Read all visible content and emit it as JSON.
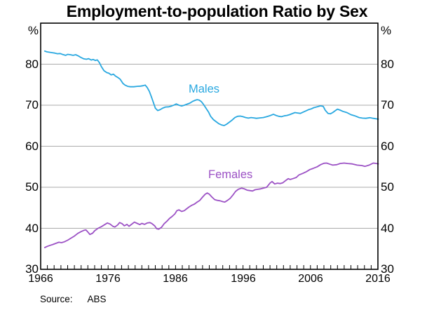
{
  "chart_data": {
    "type": "line",
    "title": "Employment-to-population Ratio by Sex",
    "unit": "%",
    "xlabel": "",
    "ylabel": "%",
    "x_range": [
      1966,
      2016
    ],
    "y_range": [
      30,
      90
    ],
    "yticks": [
      30,
      40,
      50,
      60,
      70,
      80
    ],
    "gridlines": [
      40,
      50,
      60,
      70,
      80
    ],
    "xticks": [
      1966,
      1976,
      1986,
      1996,
      2006,
      2016
    ],
    "x_tick_interval_years": 1,
    "grid_on": true,
    "grid_color": "#ababab",
    "frame_color": "#000000",
    "legend_position": "inline-labels",
    "series": [
      {
        "name": "Males",
        "color": "#29a8e0",
        "points": [
          [
            1966.6,
            83.2
          ],
          [
            1966.9,
            83.0
          ],
          [
            1967.3,
            82.9
          ],
          [
            1967.7,
            82.8
          ],
          [
            1968.1,
            82.7
          ],
          [
            1968.5,
            82.55
          ],
          [
            1968.9,
            82.6
          ],
          [
            1969.3,
            82.35
          ],
          [
            1969.7,
            82.15
          ],
          [
            1970.0,
            82.4
          ],
          [
            1970.4,
            82.3
          ],
          [
            1970.8,
            82.15
          ],
          [
            1971.2,
            82.3
          ],
          [
            1971.6,
            82.0
          ],
          [
            1972.0,
            81.6
          ],
          [
            1972.4,
            81.3
          ],
          [
            1972.8,
            81.2
          ],
          [
            1973.1,
            81.35
          ],
          [
            1973.5,
            81.0
          ],
          [
            1973.8,
            81.15
          ],
          [
            1974.1,
            80.9
          ],
          [
            1974.4,
            81.05
          ],
          [
            1974.7,
            80.4
          ],
          [
            1975.0,
            79.4
          ],
          [
            1975.4,
            78.4
          ],
          [
            1975.8,
            77.95
          ],
          [
            1976.1,
            77.8
          ],
          [
            1976.45,
            77.4
          ],
          [
            1976.8,
            77.55
          ],
          [
            1977.1,
            77.1
          ],
          [
            1977.5,
            76.7
          ],
          [
            1977.8,
            76.3
          ],
          [
            1978.2,
            75.3
          ],
          [
            1978.5,
            74.9
          ],
          [
            1978.9,
            74.6
          ],
          [
            1979.3,
            74.5
          ],
          [
            1979.8,
            74.5
          ],
          [
            1980.3,
            74.6
          ],
          [
            1980.8,
            74.65
          ],
          [
            1981.2,
            74.75
          ],
          [
            1981.5,
            74.9
          ],
          [
            1981.8,
            74.3
          ],
          [
            1982.1,
            73.4
          ],
          [
            1982.4,
            72.1
          ],
          [
            1982.7,
            70.7
          ],
          [
            1983.0,
            69.3
          ],
          [
            1983.35,
            68.7
          ],
          [
            1983.7,
            68.9
          ],
          [
            1984.1,
            69.3
          ],
          [
            1984.5,
            69.55
          ],
          [
            1985.0,
            69.6
          ],
          [
            1985.4,
            69.8
          ],
          [
            1985.8,
            70.05
          ],
          [
            1986.1,
            70.3
          ],
          [
            1986.5,
            70.0
          ],
          [
            1986.9,
            69.8
          ],
          [
            1987.3,
            70.0
          ],
          [
            1987.7,
            70.25
          ],
          [
            1988.1,
            70.5
          ],
          [
            1988.5,
            70.9
          ],
          [
            1988.9,
            71.2
          ],
          [
            1989.2,
            71.35
          ],
          [
            1989.5,
            71.25
          ],
          [
            1989.8,
            70.9
          ],
          [
            1990.1,
            70.3
          ],
          [
            1990.5,
            69.3
          ],
          [
            1990.9,
            68.3
          ],
          [
            1991.2,
            67.3
          ],
          [
            1991.6,
            66.5
          ],
          [
            1992.0,
            66.0
          ],
          [
            1992.4,
            65.5
          ],
          [
            1992.8,
            65.2
          ],
          [
            1993.2,
            65.05
          ],
          [
            1993.6,
            65.4
          ],
          [
            1994.0,
            65.9
          ],
          [
            1994.4,
            66.4
          ],
          [
            1994.8,
            67.0
          ],
          [
            1995.2,
            67.3
          ],
          [
            1995.6,
            67.35
          ],
          [
            1996.0,
            67.2
          ],
          [
            1996.4,
            67.0
          ],
          [
            1996.8,
            66.85
          ],
          [
            1997.2,
            67.0
          ],
          [
            1997.6,
            66.9
          ],
          [
            1998.0,
            66.8
          ],
          [
            1998.5,
            66.9
          ],
          [
            1999.0,
            67.0
          ],
          [
            1999.5,
            67.2
          ],
          [
            2000.0,
            67.45
          ],
          [
            2000.5,
            67.8
          ],
          [
            2000.9,
            67.5
          ],
          [
            2001.3,
            67.3
          ],
          [
            2001.7,
            67.2
          ],
          [
            2002.1,
            67.4
          ],
          [
            2002.5,
            67.5
          ],
          [
            2002.9,
            67.7
          ],
          [
            2003.3,
            67.95
          ],
          [
            2003.7,
            68.2
          ],
          [
            2004.1,
            68.1
          ],
          [
            2004.5,
            68.0
          ],
          [
            2004.9,
            68.3
          ],
          [
            2005.3,
            68.6
          ],
          [
            2005.7,
            68.9
          ],
          [
            2006.1,
            69.1
          ],
          [
            2006.5,
            69.4
          ],
          [
            2007.0,
            69.6
          ],
          [
            2007.5,
            69.85
          ],
          [
            2007.9,
            69.7
          ],
          [
            2008.2,
            68.75
          ],
          [
            2008.6,
            68.0
          ],
          [
            2008.95,
            67.9
          ],
          [
            2009.3,
            68.2
          ],
          [
            2009.7,
            68.7
          ],
          [
            2010.0,
            69.05
          ],
          [
            2010.4,
            68.8
          ],
          [
            2010.8,
            68.5
          ],
          [
            2011.4,
            68.2
          ],
          [
            2012.0,
            67.7
          ],
          [
            2012.6,
            67.4
          ],
          [
            2013.2,
            67.0
          ],
          [
            2013.7,
            66.85
          ],
          [
            2014.2,
            66.8
          ],
          [
            2014.8,
            66.95
          ],
          [
            2015.3,
            66.8
          ],
          [
            2015.7,
            66.7
          ],
          [
            2016.05,
            66.6
          ]
        ]
      },
      {
        "name": "Females",
        "color": "#9c52c5",
        "points": [
          [
            1966.6,
            35.3
          ],
          [
            1967.0,
            35.6
          ],
          [
            1967.4,
            35.85
          ],
          [
            1967.8,
            36.05
          ],
          [
            1968.2,
            36.3
          ],
          [
            1968.7,
            36.6
          ],
          [
            1969.1,
            36.5
          ],
          [
            1969.5,
            36.7
          ],
          [
            1970.0,
            37.1
          ],
          [
            1970.5,
            37.6
          ],
          [
            1971.0,
            38.1
          ],
          [
            1971.5,
            38.75
          ],
          [
            1972.0,
            39.2
          ],
          [
            1972.4,
            39.5
          ],
          [
            1972.7,
            39.6
          ],
          [
            1973.0,
            39.1
          ],
          [
            1973.3,
            38.5
          ],
          [
            1973.7,
            38.8
          ],
          [
            1974.0,
            39.4
          ],
          [
            1974.5,
            40.0
          ],
          [
            1975.0,
            40.4
          ],
          [
            1975.5,
            40.9
          ],
          [
            1975.9,
            41.3
          ],
          [
            1976.3,
            41.0
          ],
          [
            1976.7,
            40.5
          ],
          [
            1977.0,
            40.3
          ],
          [
            1977.4,
            40.8
          ],
          [
            1977.7,
            41.4
          ],
          [
            1978.1,
            41.1
          ],
          [
            1978.4,
            40.6
          ],
          [
            1978.8,
            40.95
          ],
          [
            1979.1,
            40.5
          ],
          [
            1979.5,
            41.0
          ],
          [
            1979.9,
            41.5
          ],
          [
            1980.3,
            41.2
          ],
          [
            1980.7,
            40.9
          ],
          [
            1981.0,
            41.2
          ],
          [
            1981.4,
            40.95
          ],
          [
            1981.8,
            41.3
          ],
          [
            1982.2,
            41.4
          ],
          [
            1982.5,
            41.15
          ],
          [
            1982.9,
            40.6
          ],
          [
            1983.2,
            39.9
          ],
          [
            1983.5,
            39.8
          ],
          [
            1983.9,
            40.2
          ],
          [
            1984.3,
            41.1
          ],
          [
            1984.7,
            41.7
          ],
          [
            1985.1,
            42.4
          ],
          [
            1985.5,
            42.9
          ],
          [
            1985.9,
            43.5
          ],
          [
            1986.2,
            44.3
          ],
          [
            1986.5,
            44.5
          ],
          [
            1986.9,
            44.1
          ],
          [
            1987.3,
            44.3
          ],
          [
            1987.6,
            44.7
          ],
          [
            1988.0,
            45.2
          ],
          [
            1988.4,
            45.6
          ],
          [
            1988.8,
            45.9
          ],
          [
            1989.2,
            46.4
          ],
          [
            1989.6,
            46.8
          ],
          [
            1990.0,
            47.6
          ],
          [
            1990.4,
            48.3
          ],
          [
            1990.7,
            48.6
          ],
          [
            1991.0,
            48.3
          ],
          [
            1991.4,
            47.6
          ],
          [
            1991.8,
            47.0
          ],
          [
            1992.2,
            46.8
          ],
          [
            1992.6,
            46.7
          ],
          [
            1993.0,
            46.5
          ],
          [
            1993.3,
            46.4
          ],
          [
            1993.7,
            46.8
          ],
          [
            1994.1,
            47.3
          ],
          [
            1994.5,
            48.1
          ],
          [
            1994.9,
            49.0
          ],
          [
            1995.3,
            49.5
          ],
          [
            1995.8,
            49.8
          ],
          [
            1996.2,
            49.6
          ],
          [
            1996.6,
            49.3
          ],
          [
            1997.0,
            49.2
          ],
          [
            1997.4,
            49.1
          ],
          [
            1997.8,
            49.4
          ],
          [
            1998.2,
            49.5
          ],
          [
            1998.6,
            49.6
          ],
          [
            1999.0,
            49.8
          ],
          [
            1999.5,
            50.0
          ],
          [
            2000.0,
            51.0
          ],
          [
            2000.3,
            51.4
          ],
          [
            2000.7,
            50.8
          ],
          [
            2001.1,
            51.0
          ],
          [
            2001.5,
            50.9
          ],
          [
            2001.9,
            51.1
          ],
          [
            2002.3,
            51.6
          ],
          [
            2002.7,
            52.1
          ],
          [
            2003.0,
            51.9
          ],
          [
            2003.4,
            52.1
          ],
          [
            2003.9,
            52.4
          ],
          [
            2004.3,
            53.0
          ],
          [
            2004.9,
            53.4
          ],
          [
            2005.4,
            53.8
          ],
          [
            2005.9,
            54.3
          ],
          [
            2006.4,
            54.6
          ],
          [
            2007.0,
            55.0
          ],
          [
            2007.5,
            55.5
          ],
          [
            2008.0,
            55.85
          ],
          [
            2008.4,
            55.9
          ],
          [
            2008.9,
            55.6
          ],
          [
            2009.3,
            55.4
          ],
          [
            2009.9,
            55.5
          ],
          [
            2010.4,
            55.8
          ],
          [
            2011.0,
            55.9
          ],
          [
            2011.5,
            55.8
          ],
          [
            2012.2,
            55.7
          ],
          [
            2012.9,
            55.4
          ],
          [
            2013.6,
            55.3
          ],
          [
            2014.1,
            55.1
          ],
          [
            2014.7,
            55.4
          ],
          [
            2015.3,
            55.9
          ],
          [
            2015.8,
            55.8
          ],
          [
            2016.05,
            55.7
          ]
        ]
      }
    ]
  },
  "source": {
    "label": "Source:",
    "value": "ABS"
  }
}
